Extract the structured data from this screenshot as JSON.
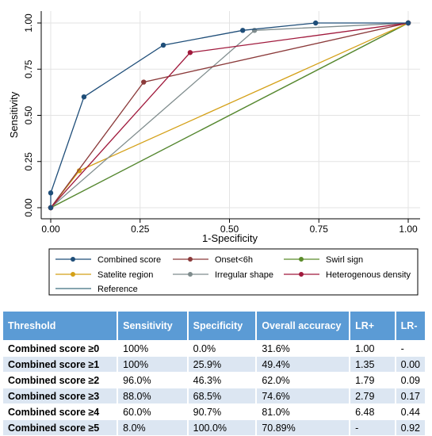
{
  "chart_data": {
    "type": "line",
    "xlabel": "1-Specificity",
    "ylabel": "Sensitivity",
    "xlim": [
      0,
      1
    ],
    "ylim": [
      0,
      1
    ],
    "x_ticks": [
      "0.00",
      "0.25",
      "0.50",
      "0.75",
      "1.00"
    ],
    "y_ticks": [
      "0.00",
      "0.25",
      "0.50",
      "0.75",
      "1.00"
    ],
    "grid": true,
    "legend_position": "bottom",
    "series": [
      {
        "name": "Combined score",
        "color": "#1f4e79",
        "points": [
          [
            0,
            0
          ],
          [
            0,
            0.08
          ],
          [
            0.093,
            0.6
          ],
          [
            0.315,
            0.88
          ],
          [
            0.537,
            0.96
          ],
          [
            0.741,
            1.0
          ],
          [
            1,
            1
          ]
        ]
      },
      {
        "name": "Onset<6h",
        "color": "#8b3a3a",
        "points": [
          [
            0,
            0
          ],
          [
            0.26,
            0.68
          ],
          [
            1,
            1
          ]
        ]
      },
      {
        "name": "Swirl sign",
        "color": "#5b8c2a",
        "points": [
          [
            0,
            0
          ],
          [
            1,
            1
          ]
        ]
      },
      {
        "name": "Satelite region",
        "color": "#d4a017",
        "points": [
          [
            0,
            0
          ],
          [
            0.08,
            0.2
          ],
          [
            1,
            1
          ]
        ]
      },
      {
        "name": "Irregular shape",
        "color": "#7f8c8d",
        "points": [
          [
            0,
            0
          ],
          [
            0.57,
            0.96
          ],
          [
            1,
            1
          ]
        ]
      },
      {
        "name": "Heterogenous density",
        "color": "#a0193c",
        "points": [
          [
            0,
            0
          ],
          [
            0.39,
            0.84
          ],
          [
            1,
            1
          ]
        ]
      },
      {
        "name": "Reference",
        "color": "#3f6f7f",
        "points": [
          [
            0,
            0
          ],
          [
            1,
            1
          ]
        ]
      }
    ]
  },
  "table": {
    "headers": [
      "Threshold",
      "Sensitivity",
      "Specificity",
      "Overall accuracy",
      "LR+",
      "LR-"
    ],
    "rows": [
      [
        "Combined score ≥0",
        "100%",
        "0.0%",
        "31.6%",
        "1.00",
        "-"
      ],
      [
        "Combined score ≥1",
        "100%",
        "25.9%",
        "49.4%",
        "1.35",
        "0.00"
      ],
      [
        "Combined score ≥2",
        "96.0%",
        "46.3%",
        "62.0%",
        "1.79",
        "0.09"
      ],
      [
        "Combined score ≥3",
        "88.0%",
        "68.5%",
        "74.6%",
        "2.79",
        "0.17"
      ],
      [
        "Combined score ≥4",
        "60.0%",
        "90.7%",
        "81.0%",
        "6.48",
        "0.44"
      ],
      [
        "Combined score ≥5",
        "8.0%",
        "100.0%",
        "70.89%",
        "-",
        "0.92"
      ]
    ]
  }
}
